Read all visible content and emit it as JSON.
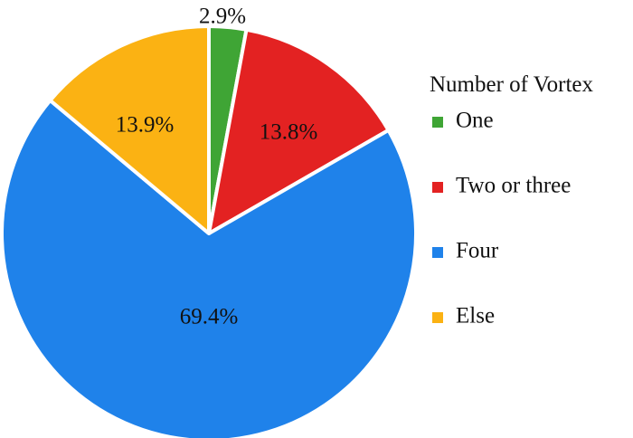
{
  "chart_data": {
    "type": "pie",
    "legend_title": "Number of Vortex",
    "legend_position": "right",
    "slices": [
      {
        "label": "One",
        "value": 2.9,
        "value_label": "2.9%",
        "color": "#3fa535"
      },
      {
        "label": "Two or three",
        "value": 13.8,
        "value_label": "13.8%",
        "color": "#e32222"
      },
      {
        "label": "Four",
        "value": 69.4,
        "value_label": "69.4%",
        "color": "#1f82ea"
      },
      {
        "label": "Else",
        "value": 13.9,
        "value_label": "13.9%",
        "color": "#fbb213"
      }
    ]
  }
}
